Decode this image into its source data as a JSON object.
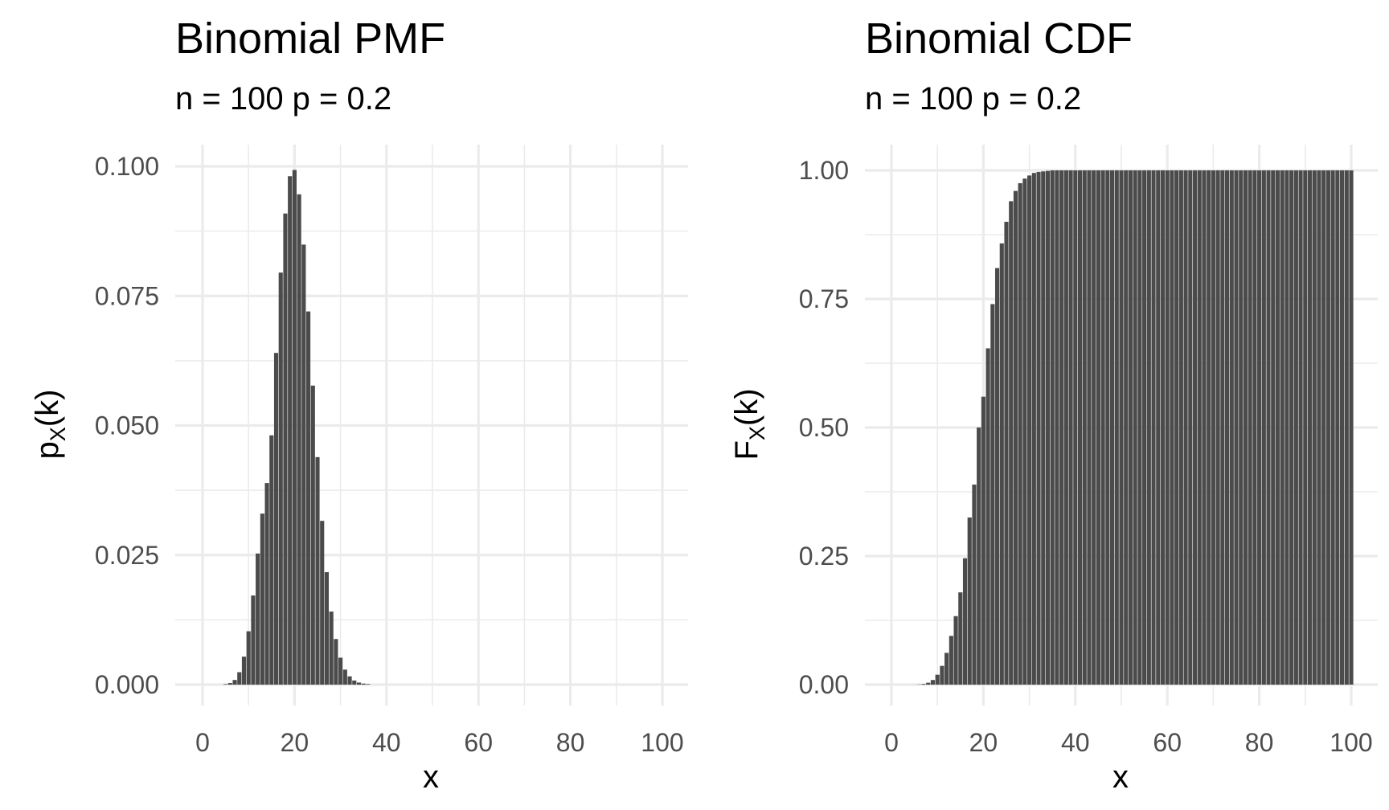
{
  "chart_data": [
    {
      "type": "bar",
      "title": "Binomial PMF",
      "subtitle": "n = 100 p = 0.2",
      "xlabel": "x",
      "ylabel": {
        "main": "p",
        "subscript": "X",
        "suffix": "(k)"
      },
      "xlim": [
        -5,
        105
      ],
      "ylim": [
        0,
        0.1
      ],
      "xticks": [
        0,
        20,
        40,
        60,
        80,
        100
      ],
      "xtick_labels": [
        "0",
        "20",
        "40",
        "60",
        "80",
        "100"
      ],
      "yticks": [
        0,
        0.025,
        0.05,
        0.075,
        0.1
      ],
      "ytick_labels": [
        "0.000",
        "0.025",
        "0.050",
        "0.075",
        "0.100"
      ],
      "grid": true,
      "x": [
        0,
        1,
        2,
        3,
        4,
        5,
        6,
        7,
        8,
        9,
        10,
        11,
        12,
        13,
        14,
        15,
        16,
        17,
        18,
        19,
        20,
        21,
        22,
        23,
        24,
        25,
        26,
        27,
        28,
        29,
        30,
        31,
        32,
        33,
        34,
        35,
        36,
        37,
        38,
        39,
        40,
        41,
        42,
        43,
        44,
        45,
        46,
        47,
        48,
        49,
        50,
        51,
        52,
        53,
        54,
        55,
        56,
        57,
        58,
        59,
        60,
        61,
        62,
        63,
        64,
        65,
        66,
        67,
        68,
        69,
        70,
        71,
        72,
        73,
        74,
        75,
        76,
        77,
        78,
        79,
        80,
        81,
        82,
        83,
        84,
        85,
        86,
        87,
        88,
        89,
        90,
        91,
        92,
        93,
        94,
        95,
        96,
        97,
        98,
        99,
        100
      ],
      "values": [
        0,
        0,
        0,
        0,
        0,
        0.0001,
        0.0003,
        0.0009,
        0.0024,
        0.0054,
        0.0103,
        0.0172,
        0.0253,
        0.033,
        0.0389,
        0.0481,
        0.064,
        0.0795,
        0.0909,
        0.0981,
        0.0993,
        0.0946,
        0.0849,
        0.072,
        0.0577,
        0.0439,
        0.0316,
        0.0217,
        0.0141,
        0.0088,
        0.0052,
        0.0029,
        0.0016,
        0.0008,
        0.0004,
        0.0002,
        0.0001,
        0,
        0,
        0,
        0,
        0,
        0,
        0,
        0,
        0,
        0,
        0,
        0,
        0,
        0,
        0,
        0,
        0,
        0,
        0,
        0,
        0,
        0,
        0,
        0,
        0,
        0,
        0,
        0,
        0,
        0,
        0,
        0,
        0,
        0,
        0,
        0,
        0,
        0,
        0,
        0,
        0,
        0,
        0,
        0,
        0,
        0,
        0,
        0,
        0,
        0,
        0,
        0,
        0,
        0,
        0,
        0,
        0,
        0,
        0,
        0,
        0,
        0,
        0,
        0
      ]
    },
    {
      "type": "bar",
      "title": "Binomial CDF",
      "subtitle": "n = 100 p = 0.2",
      "xlabel": "x",
      "ylabel": {
        "main": "F",
        "subscript": "X",
        "suffix": "(k)"
      },
      "xlim": [
        -5,
        105
      ],
      "ylim": [
        0,
        1
      ],
      "xticks": [
        0,
        20,
        40,
        60,
        80,
        100
      ],
      "xtick_labels": [
        "0",
        "20",
        "40",
        "60",
        "80",
        "100"
      ],
      "yticks": [
        0,
        0.25,
        0.5,
        0.75,
        1
      ],
      "ytick_labels": [
        "0.00",
        "0.25",
        "0.50",
        "0.75",
        "1.00"
      ],
      "grid": true,
      "x": [
        0,
        1,
        2,
        3,
        4,
        5,
        6,
        7,
        8,
        9,
        10,
        11,
        12,
        13,
        14,
        15,
        16,
        17,
        18,
        19,
        20,
        21,
        22,
        23,
        24,
        25,
        26,
        27,
        28,
        29,
        30,
        31,
        32,
        33,
        34,
        35,
        36,
        37,
        38,
        39,
        40,
        41,
        42,
        43,
        44,
        45,
        46,
        47,
        48,
        49,
        50,
        51,
        52,
        53,
        54,
        55,
        56,
        57,
        58,
        59,
        60,
        61,
        62,
        63,
        64,
        65,
        66,
        67,
        68,
        69,
        70,
        71,
        72,
        73,
        74,
        75,
        76,
        77,
        78,
        79,
        80,
        81,
        82,
        83,
        84,
        85,
        86,
        87,
        88,
        89,
        90,
        91,
        92,
        93,
        94,
        95,
        96,
        97,
        98,
        99,
        100
      ],
      "values": [
        0,
        0,
        0,
        0,
        0,
        0.0001,
        0.0004,
        0.0013,
        0.0037,
        0.009,
        0.0193,
        0.0365,
        0.0618,
        0.0948,
        0.1332,
        0.1794,
        0.2458,
        0.325,
        0.389,
        0.5,
        0.5599,
        0.654,
        0.74,
        0.81,
        0.858,
        0.9,
        0.94,
        0.96,
        0.975,
        0.984,
        0.99,
        0.995,
        0.997,
        0.998,
        0.999,
        1,
        1,
        1,
        1,
        1,
        1,
        1,
        1,
        1,
        1,
        1,
        1,
        1,
        1,
        1,
        1,
        1,
        1,
        1,
        1,
        1,
        1,
        1,
        1,
        1,
        1,
        1,
        1,
        1,
        1,
        1,
        1,
        1,
        1,
        1,
        1,
        1,
        1,
        1,
        1,
        1,
        1,
        1,
        1,
        1,
        1,
        1,
        1,
        1,
        1,
        1,
        1,
        1,
        1,
        1,
        1,
        1,
        1,
        1,
        1,
        1,
        1,
        1,
        1,
        1,
        1
      ]
    }
  ]
}
